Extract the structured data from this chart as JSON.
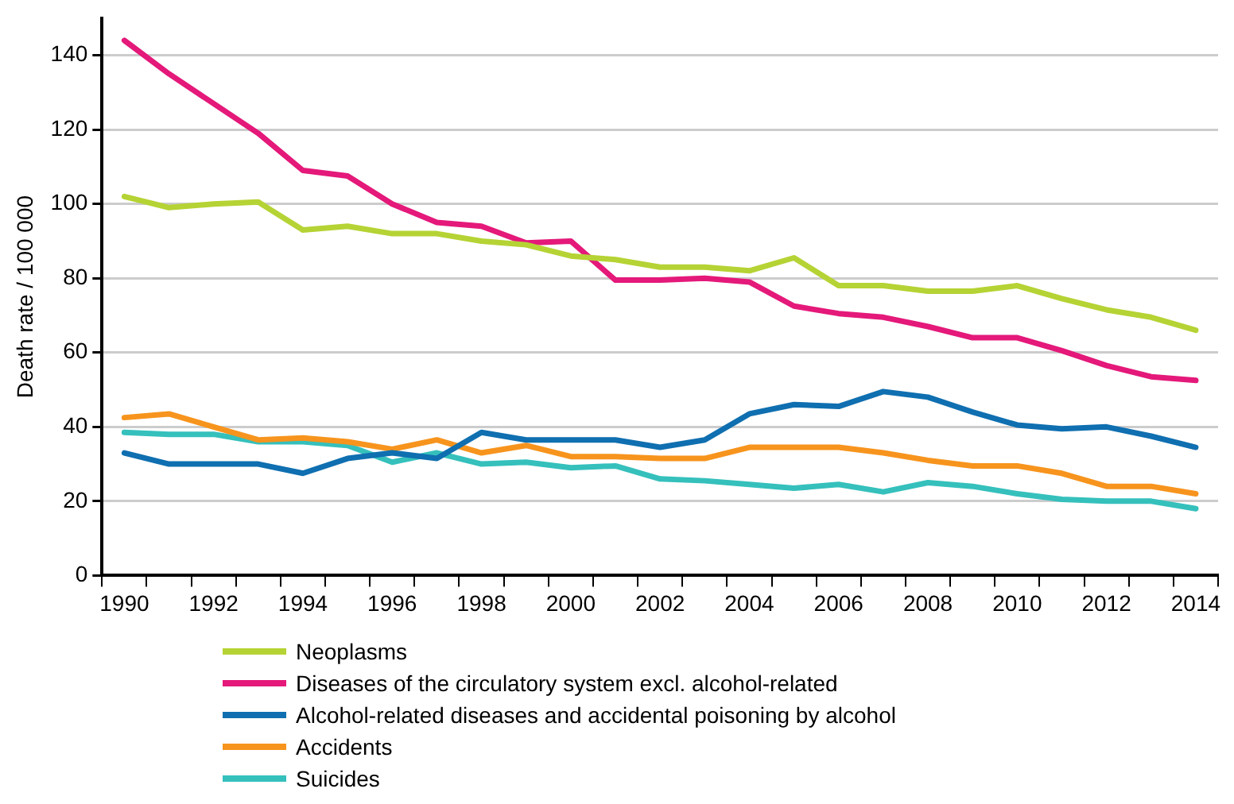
{
  "chart_data": {
    "type": "line",
    "ylabel": "Death rate / 100 000",
    "categories": [
      "1990",
      null,
      "1992",
      null,
      "1994",
      null,
      "1996",
      null,
      "1998",
      null,
      "2000",
      null,
      "2002",
      null,
      "2004",
      null,
      "2006",
      null,
      "2008",
      null,
      "2010",
      null,
      "2012",
      null,
      "2014"
    ],
    "ylim": [
      0,
      150
    ],
    "yticks": [
      0,
      20,
      40,
      60,
      80,
      100,
      120,
      140
    ],
    "grid": "y",
    "legend": "bottom",
    "marker": "none",
    "line_style": "solid",
    "series": [
      {
        "name": "Neoplasms",
        "color": "#b5d334",
        "values": [
          102,
          99,
          100,
          100.5,
          93,
          94,
          92,
          92,
          90,
          89,
          86,
          85,
          83,
          83,
          82,
          85.5,
          78,
          78,
          76.5,
          76.5,
          78,
          74.5,
          71.5,
          69.5,
          66
        ]
      },
      {
        "name": "Diseases of the circulatory system excl. alcohol-related",
        "color": "#e4197a",
        "values": [
          144,
          135,
          127,
          119,
          109,
          107.5,
          100,
          95,
          94,
          89.5,
          90,
          79.5,
          79.5,
          80,
          79,
          72.5,
          70.5,
          69.5,
          67,
          64,
          64,
          60.5,
          56.5,
          53.5,
          52.5
        ]
      },
      {
        "name": "Alcohol-related diseases and accidental poisoning by alcohol",
        "color": "#0f6fb0",
        "values": [
          33,
          30,
          30,
          30,
          27.5,
          31.5,
          33,
          31.5,
          38.5,
          36.5,
          36.5,
          36.5,
          34.5,
          36.5,
          43.5,
          46,
          45.5,
          49.5,
          48,
          44,
          40.5,
          39.5,
          40,
          37.5,
          34.5
        ]
      },
      {
        "name": "Accidents",
        "color": "#f7941d",
        "values": [
          42.5,
          43.5,
          40,
          36.5,
          37,
          36,
          34,
          36.5,
          33,
          35,
          32,
          32,
          31.5,
          31.5,
          34.5,
          34.5,
          34.5,
          33,
          31,
          29.5,
          29.5,
          27.5,
          24,
          24,
          22
        ]
      },
      {
        "name": "Suicides",
        "color": "#35c0bc",
        "values": [
          38.5,
          38,
          38,
          36,
          36,
          35,
          30.5,
          33,
          30,
          30.5,
          29,
          29.5,
          26,
          25.5,
          24.5,
          23.5,
          24.5,
          22.5,
          25,
          24,
          22,
          20.5,
          20,
          20,
          18
        ]
      }
    ]
  }
}
